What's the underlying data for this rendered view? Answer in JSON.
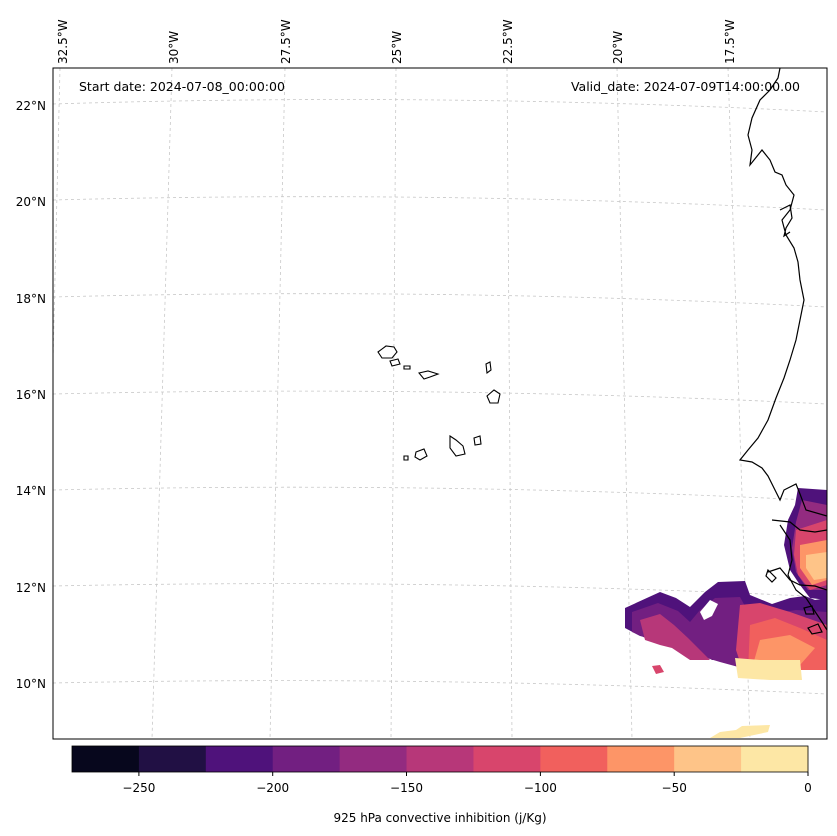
{
  "map": {
    "start_label": "Start date: 2024-07-08_00:00:00",
    "valid_label": "Valid_date: 2024-07-09T14:00:00.00",
    "lon_labels": [
      "32.5°W",
      "30°W",
      "27.5°W",
      "25°W",
      "22.5°W",
      "20°W",
      "17.5°W"
    ],
    "lat_labels": [
      "22°N",
      "20°N",
      "18°N",
      "16°N",
      "14°N",
      "12°N",
      "10°N"
    ],
    "variable": "925 hPa convective inhibition"
  },
  "colorbar": {
    "label": "925 hPa convective inhibition (j/Kg)",
    "tick_labels": [
      "−250",
      "−200",
      "−150",
      "−100",
      "−50",
      "0"
    ],
    "levels": [
      -275,
      -250,
      -225,
      -200,
      -175,
      -150,
      -125,
      -100,
      -75,
      -50,
      -25,
      0
    ],
    "colors": [
      "#07071d",
      "#211044",
      "#4f127b",
      "#721f81",
      "#932b80",
      "#b73779",
      "#d8456c",
      "#f1605d",
      "#fd9567",
      "#fec488",
      "#fde7a5"
    ]
  }
}
